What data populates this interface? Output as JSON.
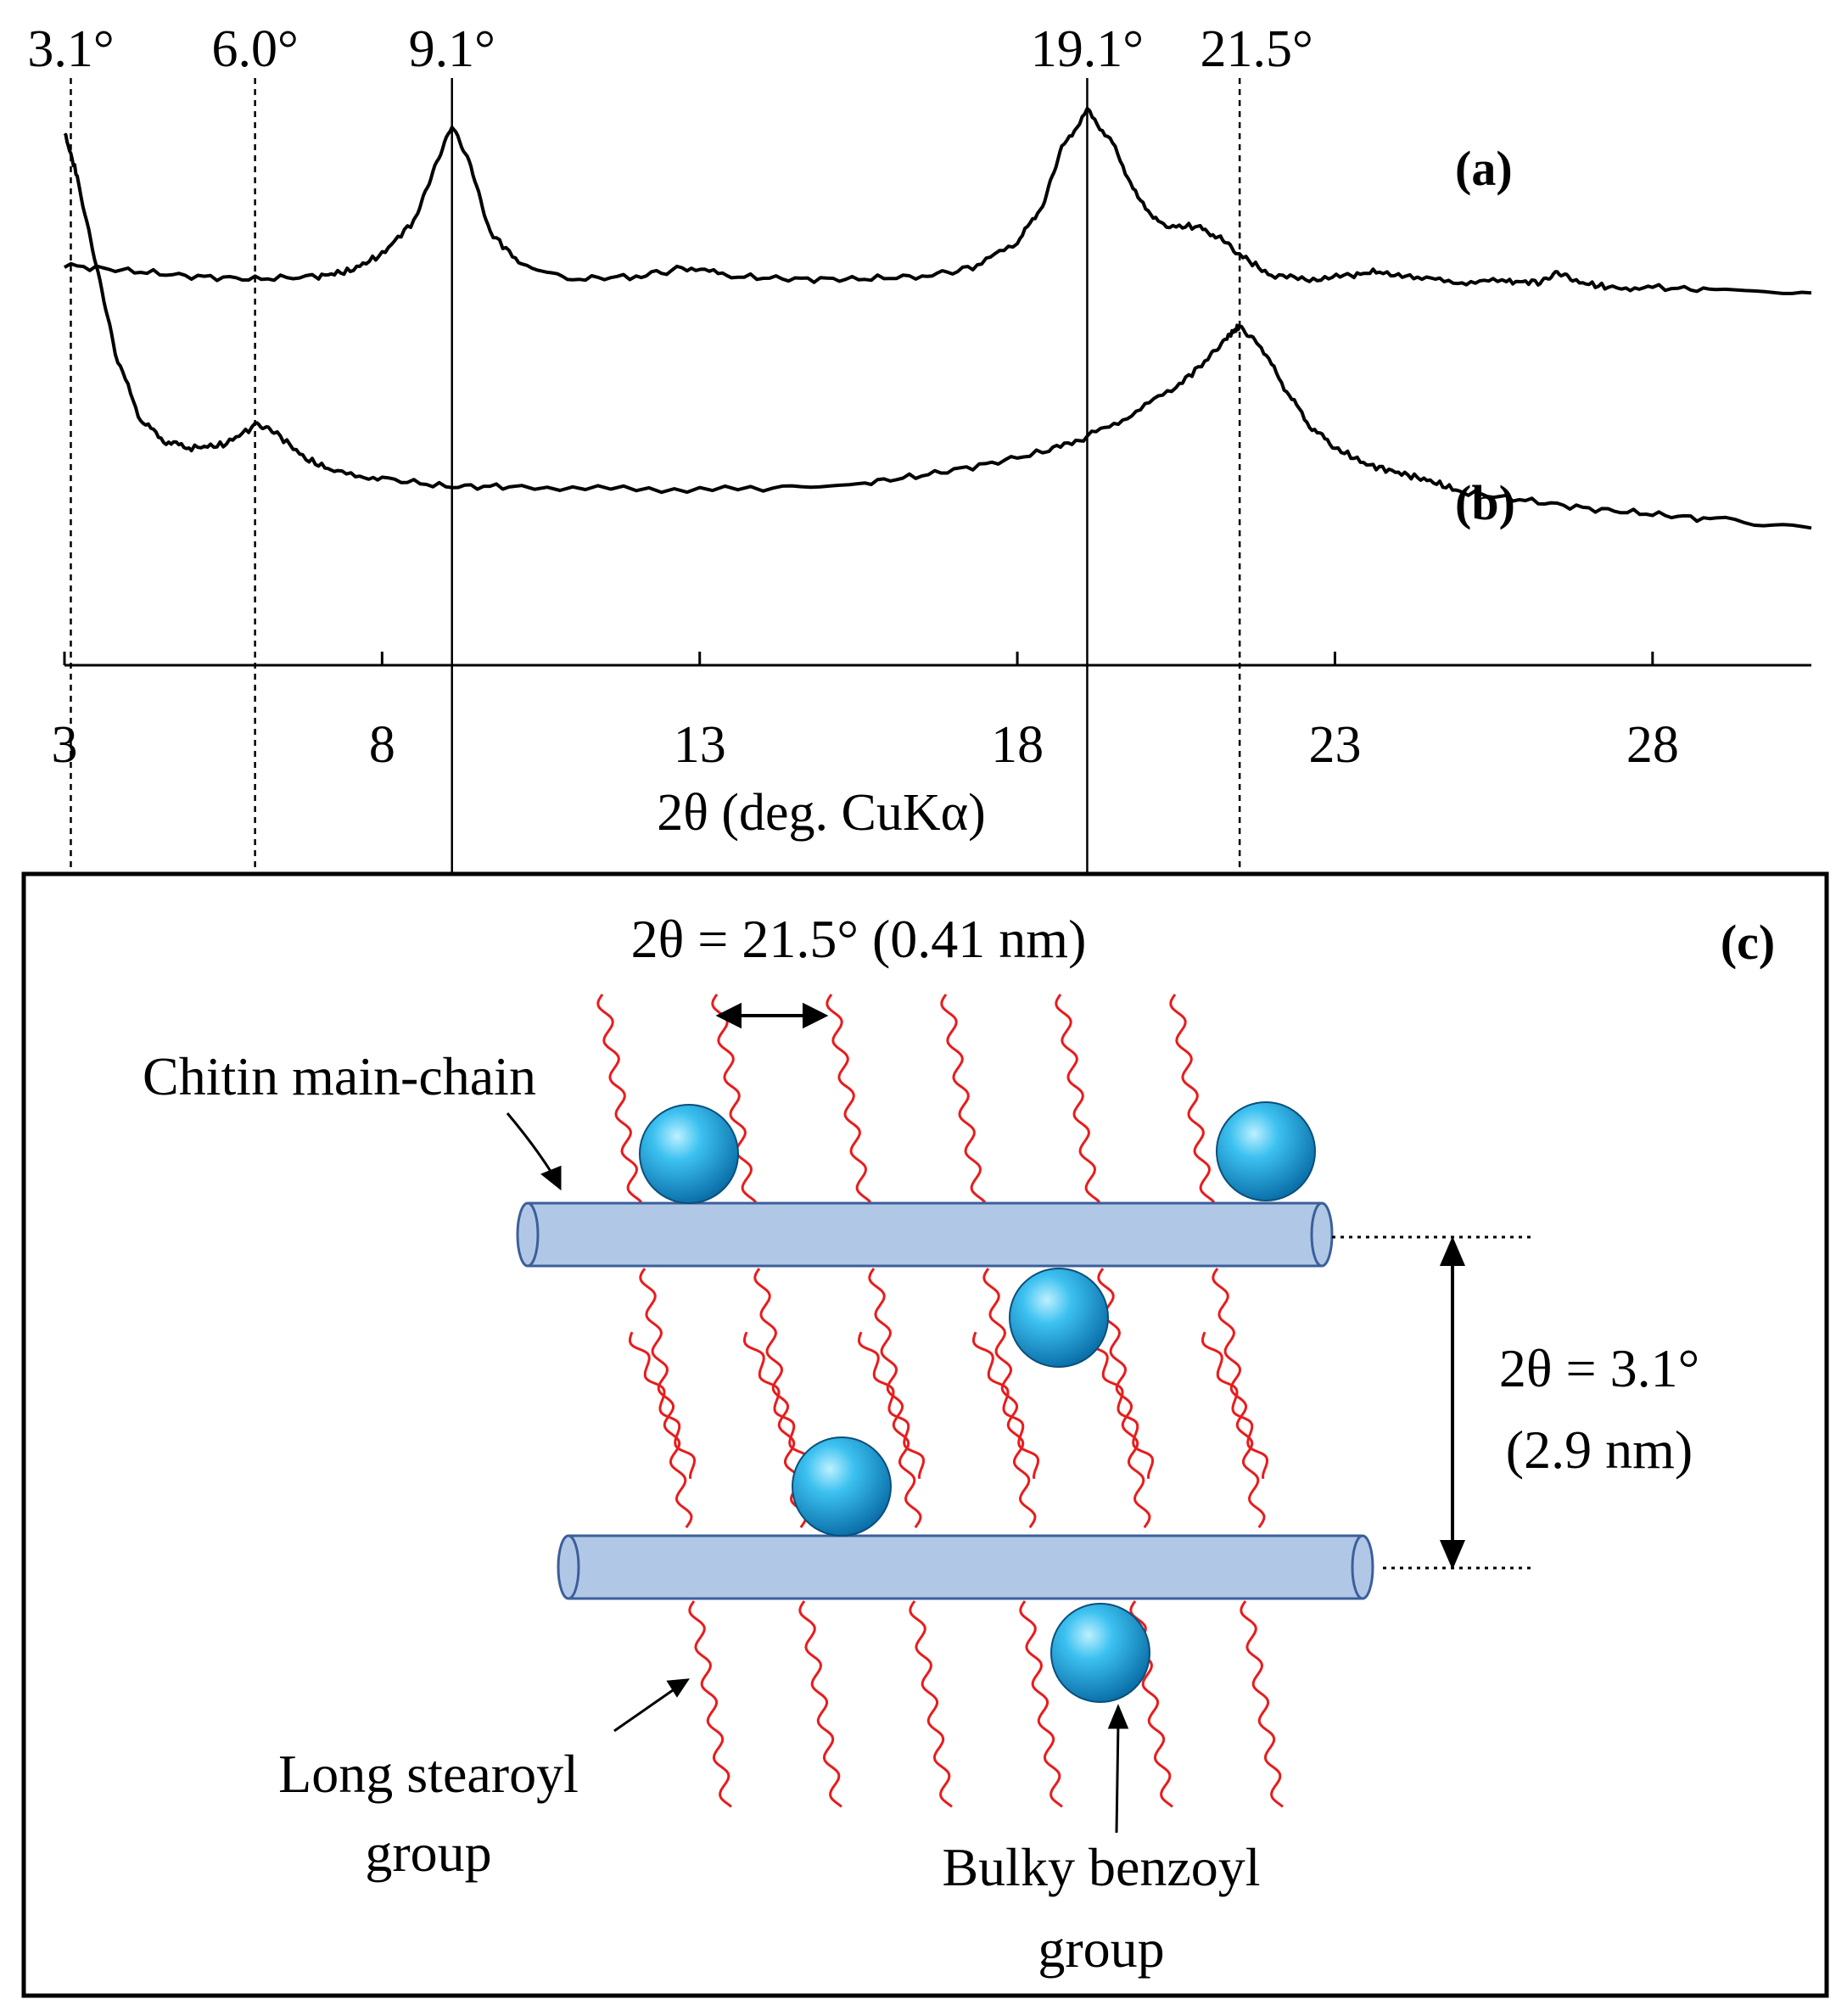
{
  "chart_data": {
    "type": "line",
    "xlabel": "2θ (deg. CuKα)",
    "xlim": [
      3,
      30.5
    ],
    "xticks": [
      "3",
      "8",
      "13",
      "18",
      "23",
      "28"
    ],
    "xtick_values": [
      3,
      8,
      13,
      18,
      23,
      28
    ],
    "y_axis_shown": false,
    "grid": false,
    "reference_lines": [
      {
        "x": 3.1,
        "label": "3.1°",
        "style": "dashed"
      },
      {
        "x": 6.0,
        "label": "6.0°",
        "style": "dashed"
      },
      {
        "x": 9.1,
        "label": "9.1°",
        "style": "solid"
      },
      {
        "x": 19.1,
        "label": "19.1°",
        "style": "solid"
      },
      {
        "x": 21.5,
        "label": "21.5°",
        "style": "dashed"
      }
    ],
    "series": [
      {
        "name": "(a)",
        "x": [
          3.0,
          4.0,
          5.0,
          6.0,
          7.0,
          7.5,
          8.0,
          8.5,
          8.8,
          9.1,
          9.4,
          9.7,
          10.2,
          11.0,
          12.0,
          12.8,
          13.5,
          14.5,
          15.5,
          16.5,
          17.3,
          18.0,
          18.4,
          18.7,
          19.1,
          19.5,
          19.9,
          20.3,
          20.8,
          21.2,
          21.5,
          22.0,
          22.6,
          23.2,
          23.7,
          24.3,
          25.0,
          25.7,
          26.2,
          26.5,
          26.8,
          27.3,
          28.0,
          29.0,
          30.5
        ],
        "y": [
          0.72,
          0.71,
          0.7,
          0.695,
          0.7,
          0.71,
          0.74,
          0.8,
          0.89,
          0.97,
          0.9,
          0.78,
          0.72,
          0.695,
          0.7,
          0.715,
          0.7,
          0.695,
          0.695,
          0.7,
          0.715,
          0.76,
          0.83,
          0.93,
          1.0,
          0.94,
          0.84,
          0.79,
          0.79,
          0.77,
          0.74,
          0.7,
          0.695,
          0.7,
          0.71,
          0.695,
          0.69,
          0.69,
          0.69,
          0.705,
          0.69,
          0.68,
          0.68,
          0.675,
          0.67
        ]
      },
      {
        "name": "(b)",
        "x": [
          3.0,
          3.2,
          3.5,
          3.8,
          4.2,
          4.6,
          5.0,
          5.5,
          6.0,
          6.3,
          6.8,
          7.3,
          8.0,
          9.0,
          10.0,
          12.0,
          14.0,
          15.5,
          16.5,
          17.5,
          18.5,
          19.1,
          19.8,
          20.5,
          21.0,
          21.3,
          21.5,
          21.8,
          22.2,
          22.6,
          23.0,
          23.5,
          24.0,
          24.5,
          25.0,
          26.0,
          27.0,
          28.0,
          29.0,
          30.5
        ],
        "y": [
          0.96,
          0.88,
          0.72,
          0.56,
          0.44,
          0.4,
          0.39,
          0.395,
          0.43,
          0.42,
          0.37,
          0.345,
          0.335,
          0.32,
          0.32,
          0.315,
          0.315,
          0.325,
          0.34,
          0.36,
          0.385,
          0.41,
          0.45,
          0.5,
          0.55,
          0.59,
          0.61,
          0.58,
          0.5,
          0.43,
          0.39,
          0.36,
          0.345,
          0.33,
          0.31,
          0.295,
          0.28,
          0.27,
          0.26,
          0.245
        ]
      }
    ]
  },
  "diagram": {
    "panel_label": "(c)",
    "spacing_top_label": "2θ = 21.5° (0.41 nm)",
    "spacing_right_label_line1": "2θ = 3.1°",
    "spacing_right_label_line2": "(2.9 nm)",
    "main_chain_label": "Chitin main-chain",
    "stearoyl_label_line1": "Long stearoyl",
    "stearoyl_label_line2": "group",
    "benzoyl_label_line1": "Bulky benzoyl",
    "benzoyl_label_line2": "group"
  },
  "colors": {
    "trace": "#000000",
    "chain_fill": "#b0c8e6",
    "chain_stroke": "#3c5f9a",
    "stearoyl": "#e81c1c",
    "benzoyl": "#1aa6e0"
  }
}
